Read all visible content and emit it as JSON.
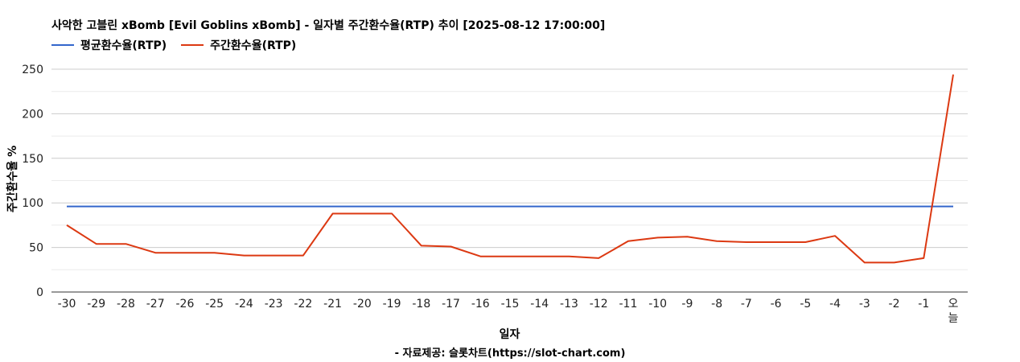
{
  "chart_data": {
    "type": "line",
    "title": "사악한 고블린 xBomb [Evil Goblins xBomb] - 일자별 주간환수율(RTP) 추이 [2025-08-12 17:00:00]",
    "xlabel": "일자",
    "ylabel": "주간환수율 %",
    "source": "- 자료제공: 슬롯차트(https://slot-chart.com)",
    "categories": [
      "-30",
      "-29",
      "-28",
      "-27",
      "-26",
      "-25",
      "-24",
      "-23",
      "-22",
      "-21",
      "-20",
      "-19",
      "-18",
      "-17",
      "-16",
      "-15",
      "-14",
      "-13",
      "-12",
      "-11",
      "-10",
      "-9",
      "-8",
      "-7",
      "-6",
      "-5",
      "-4",
      "-3",
      "-2",
      "-1",
      "오늘"
    ],
    "ylim": [
      0,
      250
    ],
    "yticks": [
      0,
      50,
      100,
      150,
      200,
      250
    ],
    "grid": true,
    "legend_position": "top-left",
    "series": [
      {
        "name": "평균환수율(RTP)",
        "color": "#3366cc",
        "values": [
          96,
          96,
          96,
          96,
          96,
          96,
          96,
          96,
          96,
          96,
          96,
          96,
          96,
          96,
          96,
          96,
          96,
          96,
          96,
          96,
          96,
          96,
          96,
          96,
          96,
          96,
          96,
          96,
          96,
          96,
          96
        ]
      },
      {
        "name": "주간환수율(RTP)",
        "color": "#dc3912",
        "values": [
          75,
          54,
          54,
          44,
          44,
          44,
          41,
          41,
          41,
          88,
          88,
          88,
          52,
          51,
          40,
          40,
          40,
          40,
          38,
          57,
          61,
          62,
          57,
          56,
          56,
          56,
          63,
          33,
          33,
          38,
          244
        ]
      }
    ]
  }
}
